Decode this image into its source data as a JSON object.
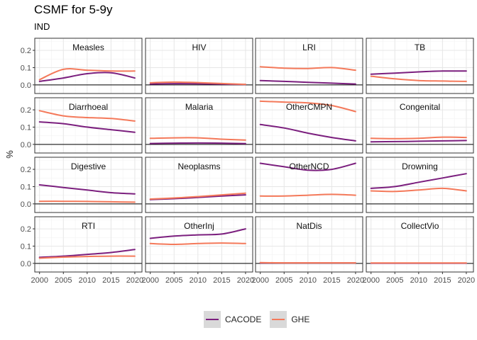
{
  "title": "CSMF for 5-9y",
  "subtitle": "IND",
  "chart_data": {
    "type": "line",
    "facet_layout": "4x4 grid, shared axes",
    "xlabel": "",
    "ylabel": "%",
    "xlim": [
      1999,
      2021.5
    ],
    "ylim": [
      -0.05,
      0.27
    ],
    "xticks": [
      2000,
      2005,
      2010,
      2015,
      2020
    ],
    "yticks": [
      0.0,
      0.1,
      0.2
    ],
    "ytick_labels": [
      "0.0",
      "0.1",
      "0.2"
    ],
    "grid": true,
    "zero_line": true,
    "legend_position": "bottom",
    "x": [
      2000,
      2005,
      2010,
      2015,
      2020
    ],
    "series_colors": {
      "CACODE": "#7b1f7e",
      "GHE": "#f4795a"
    },
    "panels": [
      {
        "name": "Measles",
        "series": [
          {
            "name": "CACODE",
            "values": [
              0.02,
              0.04,
              0.065,
              0.07,
              0.04
            ]
          },
          {
            "name": "GHE",
            "values": [
              0.03,
              0.09,
              0.085,
              0.08,
              0.08
            ]
          }
        ]
      },
      {
        "name": "HIV",
        "series": [
          {
            "name": "CACODE",
            "values": [
              0.005,
              0.007,
              0.006,
              0.004,
              0.002
            ]
          },
          {
            "name": "GHE",
            "values": [
              0.012,
              0.016,
              0.013,
              0.008,
              0.003
            ]
          }
        ]
      },
      {
        "name": "LRI",
        "series": [
          {
            "name": "CACODE",
            "values": [
              0.025,
              0.02,
              0.015,
              0.01,
              0.005
            ]
          },
          {
            "name": "GHE",
            "values": [
              0.105,
              0.097,
              0.095,
              0.1,
              0.085
            ]
          }
        ]
      },
      {
        "name": "TB",
        "series": [
          {
            "name": "CACODE",
            "values": [
              0.062,
              0.068,
              0.075,
              0.08,
              0.08
            ]
          },
          {
            "name": "GHE",
            "values": [
              0.05,
              0.035,
              0.025,
              0.022,
              0.02
            ]
          }
        ]
      },
      {
        "name": "Diarrhoeal",
        "series": [
          {
            "name": "CACODE",
            "values": [
              0.13,
              0.12,
              0.1,
              0.085,
              0.07
            ]
          },
          {
            "name": "GHE",
            "values": [
              0.195,
              0.165,
              0.155,
              0.15,
              0.135
            ]
          }
        ]
      },
      {
        "name": "Malaria",
        "series": [
          {
            "name": "CACODE",
            "values": [
              0.005,
              0.007,
              0.008,
              0.007,
              0.004
            ]
          },
          {
            "name": "GHE",
            "values": [
              0.035,
              0.038,
              0.038,
              0.03,
              0.025
            ]
          }
        ]
      },
      {
        "name": "OtherCMPN",
        "series": [
          {
            "name": "CACODE",
            "values": [
              0.115,
              0.095,
              0.065,
              0.04,
              0.02
            ]
          },
          {
            "name": "GHE",
            "values": [
              0.25,
              0.245,
              0.24,
              0.225,
              0.19
            ]
          }
        ]
      },
      {
        "name": "Congenital",
        "series": [
          {
            "name": "CACODE",
            "values": [
              0.015,
              0.016,
              0.018,
              0.02,
              0.022
            ]
          },
          {
            "name": "GHE",
            "values": [
              0.035,
              0.033,
              0.035,
              0.042,
              0.04
            ]
          }
        ]
      },
      {
        "name": "Digestive",
        "series": [
          {
            "name": "CACODE",
            "values": [
              0.11,
              0.095,
              0.08,
              0.065,
              0.058
            ]
          },
          {
            "name": "GHE",
            "values": [
              0.015,
              0.015,
              0.014,
              0.012,
              0.01
            ]
          }
        ]
      },
      {
        "name": "Neoplasms",
        "series": [
          {
            "name": "CACODE",
            "values": [
              0.025,
              0.03,
              0.037,
              0.045,
              0.052
            ]
          },
          {
            "name": "GHE",
            "values": [
              0.028,
              0.034,
              0.042,
              0.052,
              0.062
            ]
          }
        ]
      },
      {
        "name": "OtherNCD",
        "series": [
          {
            "name": "CACODE",
            "values": [
              0.235,
              0.215,
              0.195,
              0.2,
              0.235
            ]
          },
          {
            "name": "GHE",
            "values": [
              0.045,
              0.045,
              0.05,
              0.055,
              0.05
            ]
          }
        ]
      },
      {
        "name": "Drowning",
        "series": [
          {
            "name": "CACODE",
            "values": [
              0.09,
              0.1,
              0.125,
              0.15,
              0.175
            ]
          },
          {
            "name": "GHE",
            "values": [
              0.075,
              0.072,
              0.08,
              0.09,
              0.075
            ]
          }
        ]
      },
      {
        "name": "RTI",
        "series": [
          {
            "name": "CACODE",
            "values": [
              0.035,
              0.042,
              0.052,
              0.063,
              0.08
            ]
          },
          {
            "name": "GHE",
            "values": [
              0.03,
              0.036,
              0.04,
              0.042,
              0.042
            ]
          }
        ]
      },
      {
        "name": "OtherInj",
        "series": [
          {
            "name": "CACODE",
            "values": [
              0.145,
              0.158,
              0.165,
              0.17,
              0.2
            ]
          },
          {
            "name": "GHE",
            "values": [
              0.115,
              0.11,
              0.115,
              0.118,
              0.115
            ]
          }
        ]
      },
      {
        "name": "NatDis",
        "series": [
          {
            "name": "CACODE",
            "values": [
              0.002,
              0.002,
              0.002,
              0.002,
              0.002
            ]
          },
          {
            "name": "GHE",
            "values": [
              0.004,
              0.003,
              0.003,
              0.003,
              0.003
            ]
          }
        ]
      },
      {
        "name": "CollectVio",
        "series": [
          {
            "name": "CACODE",
            "values": [
              0.001,
              0.001,
              0.001,
              0.001,
              0.001
            ]
          },
          {
            "name": "GHE",
            "values": [
              0.002,
              0.002,
              0.002,
              0.002,
              0.002
            ]
          }
        ]
      }
    ]
  }
}
